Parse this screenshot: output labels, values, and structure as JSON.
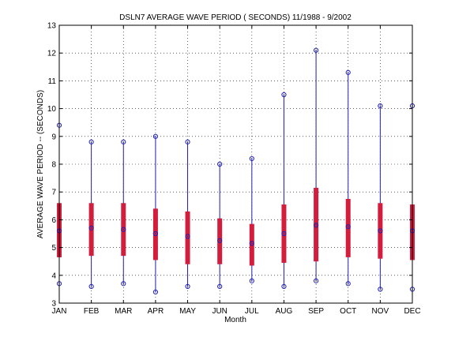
{
  "chart_data": {
    "type": "box",
    "title": "DSLN7  AVERAGE WAVE PERIOD ( SECONDS) 11/1988 - 9/2002",
    "xlabel": "Month",
    "ylabel": "AVERAGE WAVE PERIOD --  (SECONDS)",
    "ylim": [
      3,
      13
    ],
    "yticks": [
      3,
      4,
      5,
      6,
      7,
      8,
      9,
      10,
      11,
      12,
      13
    ],
    "grid": true,
    "categories": [
      "JAN",
      "FEB",
      "MAR",
      "APR",
      "MAY",
      "JUN",
      "JUL",
      "AUG",
      "SEP",
      "OCT",
      "NOV",
      "DEC"
    ],
    "series": [
      {
        "whisker_low": [
          3.7,
          3.6,
          3.7,
          3.4,
          3.6,
          3.6,
          3.8,
          3.6,
          3.8,
          3.7,
          3.5,
          3.5
        ],
        "box_low": [
          4.65,
          4.7,
          4.7,
          4.55,
          4.4,
          4.4,
          4.35,
          4.45,
          4.5,
          4.65,
          4.6,
          4.55
        ],
        "median": [
          5.6,
          5.7,
          5.65,
          5.5,
          5.4,
          5.25,
          5.15,
          5.5,
          5.8,
          5.75,
          5.6,
          5.6
        ],
        "box_high": [
          6.6,
          6.6,
          6.6,
          6.4,
          6.3,
          6.05,
          5.85,
          6.55,
          7.15,
          6.75,
          6.6,
          6.55
        ],
        "whisker_high": [
          9.4,
          8.8,
          8.8,
          9.0,
          8.8,
          8.0,
          8.2,
          10.5,
          12.1,
          11.3,
          10.1,
          10.1
        ]
      }
    ],
    "colors": {
      "whisker": "#1f1fb4",
      "box": "#d21e3c",
      "marker": "#1f1fb4",
      "axis": "#000000",
      "grid": "#000000"
    }
  }
}
